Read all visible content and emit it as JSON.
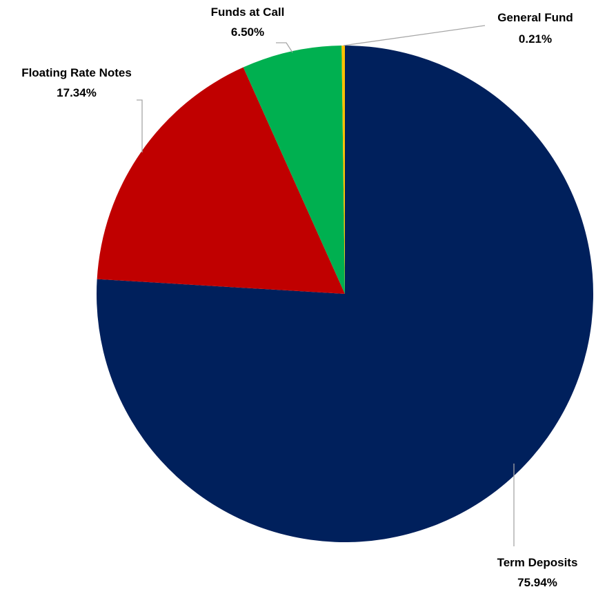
{
  "chart_data": {
    "type": "pie",
    "title": "",
    "slices": [
      {
        "label": "Term Deposits",
        "value": 75.94,
        "display": "75.94%",
        "color": "#00205C"
      },
      {
        "label": "Floating Rate Notes",
        "value": 17.34,
        "display": "17.34%",
        "color": "#C00000"
      },
      {
        "label": "Funds at Call",
        "value": 6.5,
        "display": "6.50%",
        "color": "#00B050"
      },
      {
        "label": "General Fund",
        "value": 0.21,
        "display": "0.21%",
        "color": "#FFC000"
      }
    ],
    "start_angle": "12 o'clock",
    "direction": "clockwise",
    "legend": "none"
  }
}
